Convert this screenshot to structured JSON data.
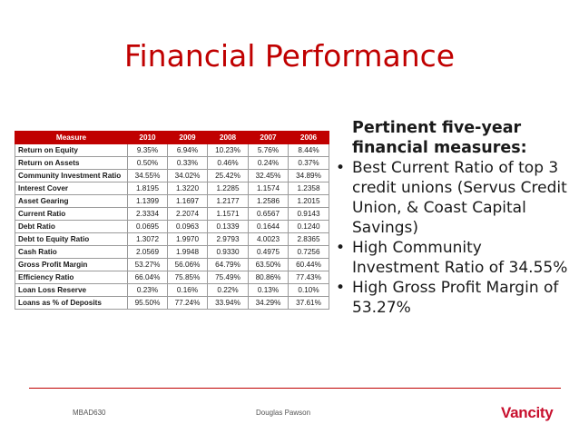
{
  "slide": {
    "title": "Financial Performance"
  },
  "table": {
    "headers": [
      "Measure",
      "2010",
      "2009",
      "2008",
      "2007",
      "2006"
    ],
    "rows": [
      {
        "measure": "Return on Equity",
        "values": [
          "9.35%",
          "6.94%",
          "10.23%",
          "5.76%",
          "8.44%"
        ]
      },
      {
        "measure": "Return on Assets",
        "values": [
          "0.50%",
          "0.33%",
          "0.46%",
          "0.24%",
          "0.37%"
        ]
      },
      {
        "measure": "Community Investment Ratio",
        "values": [
          "34.55%",
          "34.02%",
          "25.42%",
          "32.45%",
          "34.89%"
        ]
      },
      {
        "measure": "Interest Cover",
        "values": [
          "1.8195",
          "1.3220",
          "1.2285",
          "1.1574",
          "1.2358"
        ]
      },
      {
        "measure": "Asset Gearing",
        "values": [
          "1.1399",
          "1.1697",
          "1.2177",
          "1.2586",
          "1.2015"
        ]
      },
      {
        "measure": "Current Ratio",
        "values": [
          "2.3334",
          "2.2074",
          "1.1571",
          "0.6567",
          "0.9143"
        ]
      },
      {
        "measure": "Debt Ratio",
        "values": [
          "0.0695",
          "0.0963",
          "0.1339",
          "0.1644",
          "0.1240"
        ]
      },
      {
        "measure": "Debt to Equity Ratio",
        "values": [
          "1.3072",
          "1.9970",
          "2.9793",
          "4.0023",
          "2.8365"
        ]
      },
      {
        "measure": "Cash Ratio",
        "values": [
          "2.0569",
          "1.9948",
          "0.9330",
          "0.4975",
          "0.7256"
        ]
      },
      {
        "measure": "Gross Profit Margin",
        "values": [
          "53.27%",
          "56.06%",
          "64.79%",
          "63.50%",
          "60.44%"
        ]
      },
      {
        "measure": "Efficiency Ratio",
        "values": [
          "66.04%",
          "75.85%",
          "75.49%",
          "80.86%",
          "77.43%"
        ]
      },
      {
        "measure": "Loan Loss Reserve",
        "values": [
          "0.23%",
          "0.16%",
          "0.22%",
          "0.13%",
          "0.10%"
        ]
      },
      {
        "measure": "Loans as % of Deposits",
        "values": [
          "95.50%",
          "77.24%",
          "33.94%",
          "34.29%",
          "37.61%"
        ]
      }
    ]
  },
  "bullets": {
    "heading": "Pertinent five-year financial measures:",
    "items": [
      "Best Current Ratio of top 3 credit unions (Servus Credit Union, & Coast Capital Savings)",
      "High Community Investment Ratio of 34.55%",
      "High Gross Profit Margin of 53.27%"
    ],
    "marker": "•"
  },
  "footer": {
    "course": "MBAD630",
    "author": "Douglas Pawson",
    "logo_text": "Vancity"
  },
  "colors": {
    "accent": "#c00000",
    "logo": "#c8102e"
  }
}
